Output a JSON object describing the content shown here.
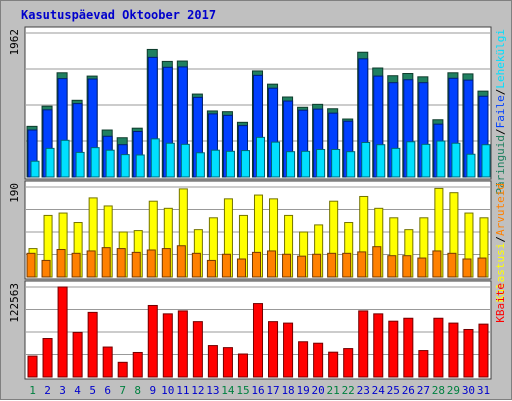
{
  "title": "Kasutuspäevad Oktoober 2017",
  "colors": {
    "background": "#c0c0c0",
    "panel": "#ffffff",
    "title": "#0000cc",
    "grid": "#999999",
    "hits": "#208060",
    "files": "#0040ff",
    "pages": "#00e0ff",
    "visits": "#ffff00",
    "sites": "#ff8000",
    "kbytes": "#ff0000",
    "weekend_label": "#008040",
    "weekday_label": "#0000cc"
  },
  "chart_data": {
    "type": "bar",
    "title": "Kasutuspäevad Oktoober 2017",
    "categories": [
      "1",
      "2",
      "3",
      "4",
      "5",
      "6",
      "7",
      "8",
      "9",
      "10",
      "11",
      "12",
      "13",
      "14",
      "15",
      "16",
      "17",
      "18",
      "19",
      "20",
      "21",
      "22",
      "23",
      "24",
      "25",
      "26",
      "27",
      "28",
      "29",
      "30",
      "31"
    ],
    "weekend_days": [
      "1",
      "7",
      "8",
      "14",
      "15",
      "21",
      "22",
      "28",
      "29"
    ],
    "panels": [
      {
        "name": "top",
        "max_label": "1962",
        "ymax": 1962,
        "legend": [
          "Päringuid",
          "Faile",
          "Lehekülgi"
        ],
        "legend_separator": "/",
        "series": [
          {
            "name": "Päringuid",
            "color_key": "hits",
            "values": [
              690,
              965,
              1420,
              1045,
              1375,
              640,
              535,
              665,
              1738,
              1575,
              1580,
              1130,
              900,
              890,
              745,
              1445,
              1265,
              1090,
              950,
              990,
              930,
              790,
              1700,
              1485,
              1380,
              1410,
              1365,
              780,
              1420,
              1405,
              1170
            ]
          },
          {
            "name": "Faile",
            "color_key": "files",
            "values": [
              640,
              915,
              1340,
              1000,
              1335,
              555,
              440,
              620,
              1630,
              1495,
              1500,
              1085,
              860,
              840,
              700,
              1385,
              1210,
              1035,
              910,
              925,
              870,
              760,
              1610,
              1375,
              1285,
              1325,
              1285,
              720,
              1345,
              1320,
              1100
            ]
          },
          {
            "name": "Lehekülgi",
            "color_key": "pages",
            "values": [
              215,
              390,
              500,
              335,
              400,
              365,
              305,
              300,
              520,
              460,
              445,
              330,
              365,
              350,
              360,
              540,
              475,
              345,
              350,
              375,
              375,
              345,
              470,
              440,
              390,
              480,
              445,
              490,
              460,
              310,
              440
            ]
          }
        ]
      },
      {
        "name": "middle",
        "max_label": "190",
        "ymax": 190,
        "legend": [
          "Külastusi",
          "Arvuteid"
        ],
        "legend_separator": "/",
        "series": [
          {
            "name": "Külastusi",
            "color_key": "visits",
            "values": [
              60,
              130,
              135,
              115,
              167,
              150,
              95,
              98,
              160,
              145,
              186,
              100,
              125,
              165,
              130,
              173,
              165,
              130,
              95,
              110,
              160,
              115,
              170,
              145,
              125,
              100,
              125,
              187,
              178,
              135,
              125
            ]
          },
          {
            "name": "Arvuteid",
            "color_key": "sites",
            "values": [
              50,
              35,
              58,
              50,
              55,
              62,
              60,
              52,
              57,
              60,
              66,
              50,
              35,
              48,
              38,
              52,
              55,
              48,
              44,
              48,
              50,
              50,
              53,
              64,
              45,
              45,
              40,
              55,
              50,
              38,
              40
            ]
          }
        ]
      },
      {
        "name": "bottom",
        "max_label": "122563",
        "ymax": 122563,
        "legend": [
          "KBaite"
        ],
        "legend_separator": "",
        "series": [
          {
            "name": "KBaite",
            "color_key": "kbytes",
            "values": [
              28500,
              52400,
              122563,
              60700,
              88000,
              40800,
              20000,
              33400,
              97400,
              86000,
              90000,
              75400,
              42800,
              40000,
              31300,
              100000,
              75400,
              73400,
              48000,
              46000,
              33800,
              38700,
              90000,
              86000,
              76000,
              80000,
              36000,
              80000,
              73400,
              64700,
              72000
            ]
          }
        ]
      }
    ]
  }
}
